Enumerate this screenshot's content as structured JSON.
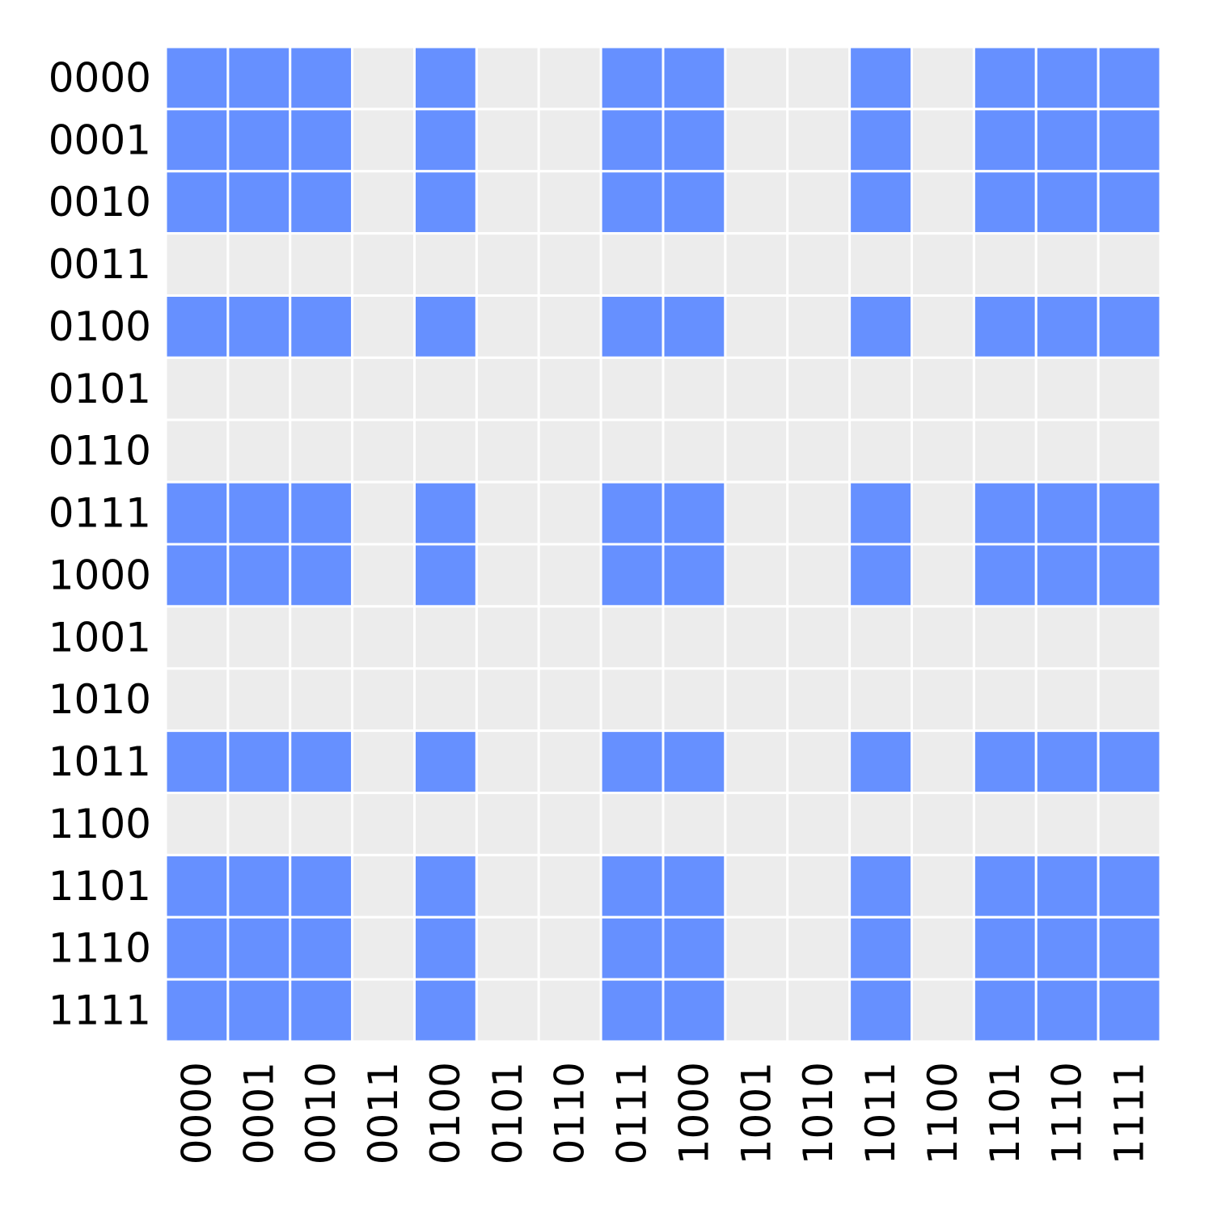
{
  "chart_data": {
    "type": "heatmap",
    "title": "",
    "xlabel": "",
    "ylabel": "",
    "x_categories": [
      "0000",
      "0001",
      "0010",
      "0011",
      "0100",
      "0101",
      "0110",
      "0111",
      "1000",
      "1001",
      "1010",
      "1011",
      "1100",
      "1101",
      "1110",
      "1111"
    ],
    "y_categories": [
      "0000",
      "0001",
      "0010",
      "0011",
      "0100",
      "0101",
      "0110",
      "0111",
      "1000",
      "1001",
      "1010",
      "1011",
      "1100",
      "1101",
      "1110",
      "1111"
    ],
    "values": [
      [
        1,
        1,
        1,
        0,
        1,
        0,
        0,
        1,
        1,
        0,
        0,
        1,
        0,
        1,
        1,
        1
      ],
      [
        1,
        1,
        1,
        0,
        1,
        0,
        0,
        1,
        1,
        0,
        0,
        1,
        0,
        1,
        1,
        1
      ],
      [
        1,
        1,
        1,
        0,
        1,
        0,
        0,
        1,
        1,
        0,
        0,
        1,
        0,
        1,
        1,
        1
      ],
      [
        0,
        0,
        0,
        0,
        0,
        0,
        0,
        0,
        0,
        0,
        0,
        0,
        0,
        0,
        0,
        0
      ],
      [
        1,
        1,
        1,
        0,
        1,
        0,
        0,
        1,
        1,
        0,
        0,
        1,
        0,
        1,
        1,
        1
      ],
      [
        0,
        0,
        0,
        0,
        0,
        0,
        0,
        0,
        0,
        0,
        0,
        0,
        0,
        0,
        0,
        0
      ],
      [
        0,
        0,
        0,
        0,
        0,
        0,
        0,
        0,
        0,
        0,
        0,
        0,
        0,
        0,
        0,
        0
      ],
      [
        1,
        1,
        1,
        0,
        1,
        0,
        0,
        1,
        1,
        0,
        0,
        1,
        0,
        1,
        1,
        1
      ],
      [
        1,
        1,
        1,
        0,
        1,
        0,
        0,
        1,
        1,
        0,
        0,
        1,
        0,
        1,
        1,
        1
      ],
      [
        0,
        0,
        0,
        0,
        0,
        0,
        0,
        0,
        0,
        0,
        0,
        0,
        0,
        0,
        0,
        0
      ],
      [
        0,
        0,
        0,
        0,
        0,
        0,
        0,
        0,
        0,
        0,
        0,
        0,
        0,
        0,
        0,
        0
      ],
      [
        1,
        1,
        1,
        0,
        1,
        0,
        0,
        1,
        1,
        0,
        0,
        1,
        0,
        1,
        1,
        1
      ],
      [
        0,
        0,
        0,
        0,
        0,
        0,
        0,
        0,
        0,
        0,
        0,
        0,
        0,
        0,
        0,
        0
      ],
      [
        1,
        1,
        1,
        0,
        1,
        0,
        0,
        1,
        1,
        0,
        0,
        1,
        0,
        1,
        1,
        1
      ],
      [
        1,
        1,
        1,
        0,
        1,
        0,
        0,
        1,
        1,
        0,
        0,
        1,
        0,
        1,
        1,
        1
      ],
      [
        1,
        1,
        1,
        0,
        1,
        0,
        0,
        1,
        1,
        0,
        0,
        1,
        0,
        1,
        1,
        1
      ]
    ],
    "colors": {
      "on": "#6690ff",
      "off": "#ececec",
      "grid": "#ffffff"
    },
    "grid": true,
    "legend": "none"
  }
}
